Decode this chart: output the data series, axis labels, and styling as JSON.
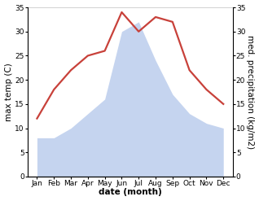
{
  "months": [
    "Jan",
    "Feb",
    "Mar",
    "Apr",
    "May",
    "Jun",
    "Jul",
    "Aug",
    "Sep",
    "Oct",
    "Nov",
    "Dec"
  ],
  "temperature": [
    12,
    18,
    22,
    25,
    26,
    34,
    30,
    33,
    32,
    22,
    18,
    15
  ],
  "precipitation": [
    8,
    8,
    10,
    13,
    16,
    30,
    32,
    24,
    17,
    13,
    11,
    10
  ],
  "temp_color": "#c8413a",
  "precip_fill_color": "#c5d4ef",
  "background_color": "#ffffff",
  "ylabel_left": "max temp (C)",
  "ylabel_right": "med. precipitation (kg/m2)",
  "xlabel": "date (month)",
  "ylim": [
    0,
    35
  ],
  "yticks": [
    0,
    5,
    10,
    15,
    20,
    25,
    30,
    35
  ],
  "axis_label_fontsize": 7.5,
  "tick_fontsize": 6.5,
  "line_width": 1.6
}
